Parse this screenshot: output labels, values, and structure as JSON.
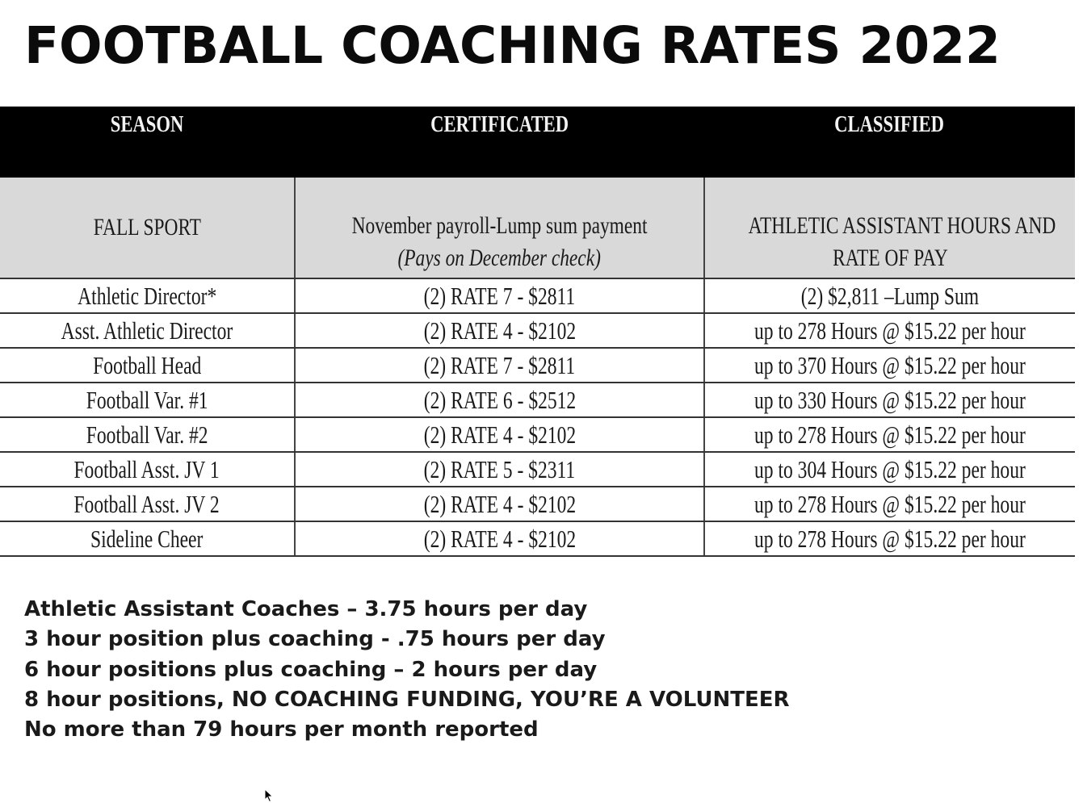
{
  "title": "FOOTBALL COACHING RATES 2022",
  "table": {
    "headers": [
      "SEASON",
      "CERTIFICATED",
      "CLASSIFIED"
    ],
    "subheader": {
      "season": "FALL SPORT",
      "certificated_line1": "November payroll-Lump sum payment",
      "certificated_line2": "(Pays on December check)",
      "classified_line1": "ATHLETIC ASSISTANT HOURS AND",
      "classified_line2": "RATE OF PAY"
    },
    "rows": [
      {
        "position": "Athletic Director*",
        "certificated": "(2) RATE 7 - $2811",
        "classified": "(2) $2,811 –Lump Sum"
      },
      {
        "position": "Asst. Athletic Director",
        "certificated": "(2) RATE 4 - $2102",
        "classified": "up to 278 Hours @ $15.22 per hour"
      },
      {
        "position": "Football Head",
        "certificated": "(2) RATE 7 - $2811",
        "classified": "up to 370 Hours @ $15.22 per hour"
      },
      {
        "position": "Football Var. #1",
        "certificated": "(2) RATE 6 - $2512",
        "classified": "up to 330 Hours @ $15.22 per hour"
      },
      {
        "position": "Football Var. #2",
        "certificated": "(2) RATE 4 - $2102",
        "classified": "up to 278 Hours @ $15.22 per hour"
      },
      {
        "position": "Football Asst. JV 1",
        "certificated": "(2) RATE 5 - $2311",
        "classified": "up to 304 Hours @ $15.22 per hour"
      },
      {
        "position": "Football Asst. JV 2",
        "certificated": "(2) RATE 4 - $2102",
        "classified": "up to 278 Hours @ $15.22 per hour"
      },
      {
        "position": "Sideline Cheer",
        "certificated": "(2) RATE 4 - $2102",
        "classified": "up to 278 Hours @ $15.22 per hour"
      }
    ]
  },
  "notes": [
    "Athletic Assistant Coaches – 3.75 hours per day",
    "3 hour position plus coaching - .75 hours per day",
    "6 hour positions plus coaching – 2 hours per day",
    "8 hour positions, NO COACHING FUNDING, YOU’RE A VOLUNTEER",
    "No more than 79 hours per month reported"
  ],
  "cursor_icon": "mouse-pointer-icon"
}
